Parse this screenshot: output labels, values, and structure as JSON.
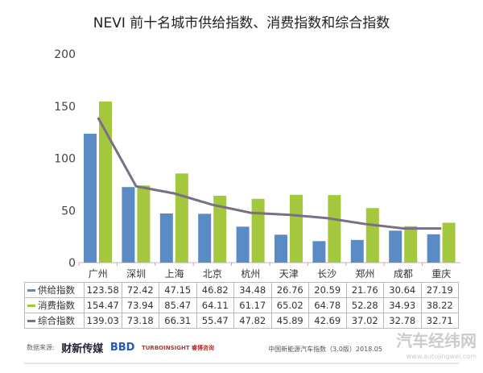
{
  "chart_data": {
    "type": "bar",
    "title": "NEVI 前十名城市供给指数、消费指数和综合指数",
    "categories": [
      "广州",
      "深圳",
      "上海",
      "北京",
      "杭州",
      "天津",
      "长沙",
      "郑州",
      "成都",
      "重庆"
    ],
    "ylim": [
      0,
      200
    ],
    "yticks": [
      0,
      50,
      100,
      150,
      200
    ],
    "grid": false,
    "legend": "table-below",
    "series": [
      {
        "name": "供给指数",
        "type": "bar",
        "color": "#5b8bc4",
        "values": [
          123.58,
          72.42,
          47.15,
          46.82,
          34.48,
          26.76,
          20.59,
          21.76,
          30.64,
          27.19
        ]
      },
      {
        "name": "消费指数",
        "type": "bar",
        "color": "#a3c83e",
        "values": [
          154.47,
          73.94,
          85.47,
          64.11,
          61.17,
          65.02,
          64.78,
          52.28,
          34.93,
          38.22
        ]
      },
      {
        "name": "综合指数",
        "type": "line",
        "color": "#7a6f86",
        "values": [
          139.03,
          73.18,
          66.31,
          55.47,
          47.82,
          45.89,
          42.69,
          37.02,
          32.78,
          32.71
        ]
      }
    ]
  },
  "footer": {
    "source_label": "数据来源:",
    "logos": [
      "财新传媒",
      "BBD",
      "TURBOINSIGHT 睿博咨询"
    ],
    "note": "中国新能源汽车指数（3.0版）2018.05"
  },
  "watermark": {
    "name": "汽车经纬网",
    "url": "www.autojingwei.com"
  }
}
